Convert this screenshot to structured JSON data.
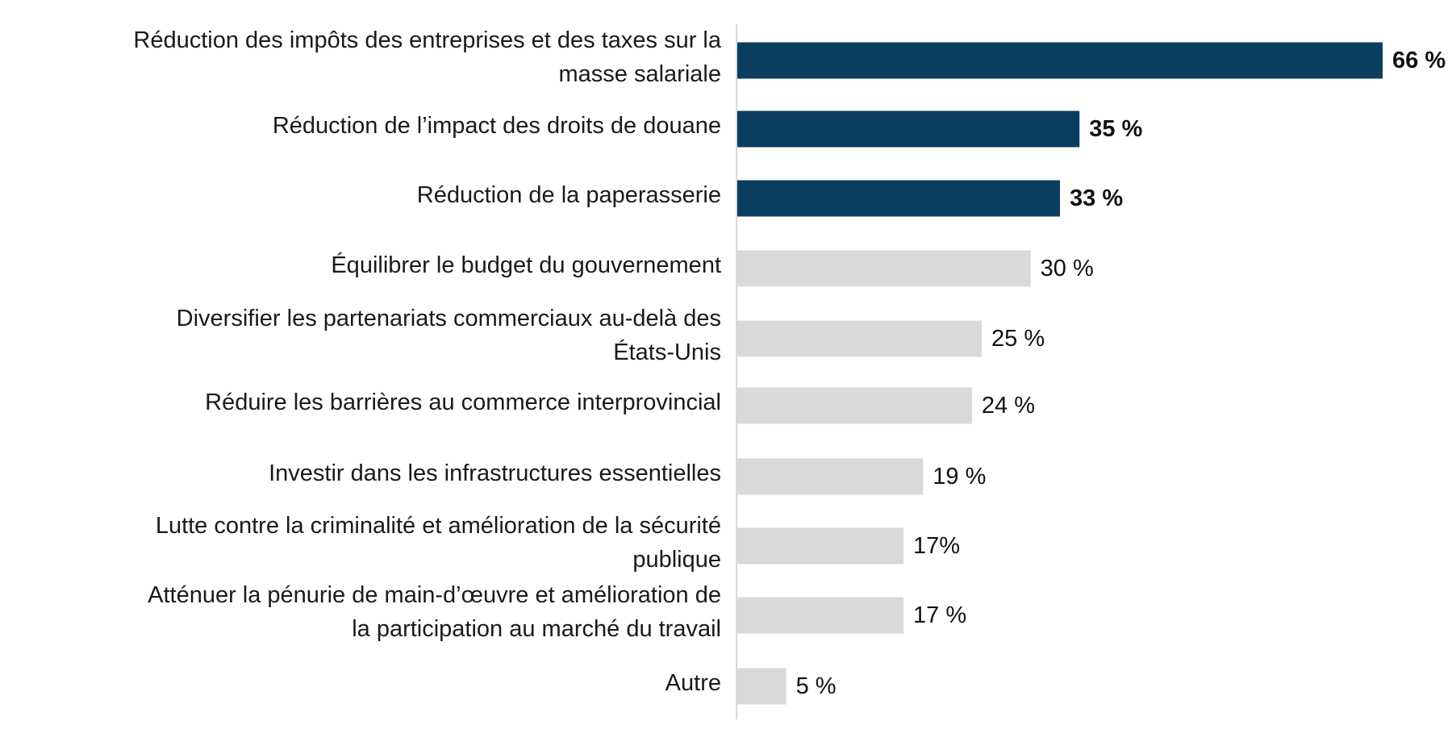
{
  "chart_data": {
    "type": "bar",
    "orientation": "horizontal",
    "title": "",
    "xlabel": "",
    "ylabel": "",
    "xlim": [
      0,
      66
    ],
    "grid": false,
    "colors": {
      "highlight": "#0b3d5f",
      "default": "#d9d9d9",
      "axis": "#cccccc"
    },
    "categories": [
      {
        "lines": [
          "Réduction des impôts des entreprises et des taxes sur la",
          "masse salariale"
        ],
        "value": 66,
        "label": "66 %",
        "highlight": true
      },
      {
        "lines": [
          "Réduction de l’impact des droits de douane"
        ],
        "value": 35,
        "label": "35 %",
        "highlight": true
      },
      {
        "lines": [
          "Réduction de la paperasserie"
        ],
        "value": 33,
        "label": "33 %",
        "highlight": true
      },
      {
        "lines": [
          "Équilibrer le budget du gouvernement"
        ],
        "value": 30,
        "label": "30 %",
        "highlight": false
      },
      {
        "lines": [
          "Diversifier les partenariats commerciaux au-delà des",
          "États-Unis"
        ],
        "value": 25,
        "label": "25 %",
        "highlight": false
      },
      {
        "lines": [
          "Réduire les barrières au commerce interprovincial"
        ],
        "value": 24,
        "label": "24 %",
        "highlight": false
      },
      {
        "lines": [
          "Investir dans les infrastructures essentielles"
        ],
        "value": 19,
        "label": "19 %",
        "highlight": false
      },
      {
        "lines": [
          "Lutte contre la criminalité et amélioration de la sécurité",
          "publique"
        ],
        "value": 17,
        "label": "17%",
        "highlight": false
      },
      {
        "lines": [
          "Atténuer la pénurie de main-d’œuvre et amélioration de",
          "la participation au marché du travail"
        ],
        "value": 17,
        "label": "17 %",
        "highlight": false
      },
      {
        "lines": [
          "Autre"
        ],
        "value": 5,
        "label": "5 %",
        "highlight": false
      }
    ]
  }
}
